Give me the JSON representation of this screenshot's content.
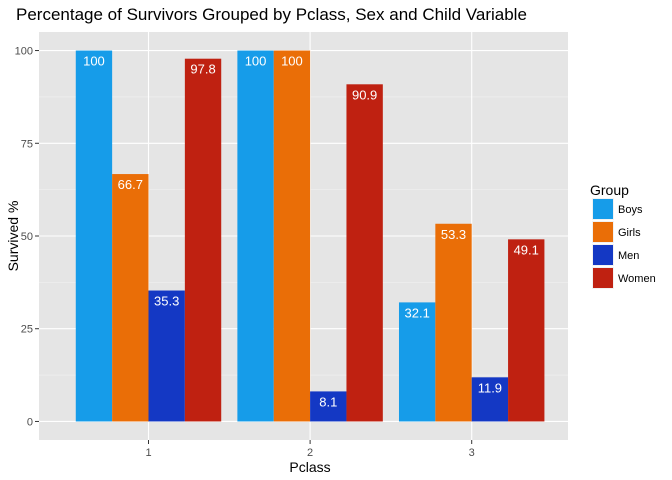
{
  "chart_data": {
    "type": "bar",
    "title": "Percentage of Survivors Grouped by Pclass, Sex and Child Variable",
    "xlabel": "Pclass",
    "ylabel": "Survived %",
    "categories": [
      "1",
      "2",
      "3"
    ],
    "yticks": [
      "0",
      "25",
      "50",
      "75",
      "100"
    ],
    "ylim": [
      -5,
      105
    ],
    "grid": true,
    "legend": {
      "title": "Group",
      "position": "right"
    },
    "series": [
      {
        "name": "Boys",
        "color": "#169ce9",
        "values": [
          100,
          100,
          32.1
        ],
        "labels": [
          "100",
          "100",
          "32.1"
        ]
      },
      {
        "name": "Girls",
        "color": "#ea6e07",
        "values": [
          66.7,
          100,
          53.3
        ],
        "labels": [
          "66.7",
          "100",
          "53.3"
        ]
      },
      {
        "name": "Men",
        "color": "#1438c4",
        "values": [
          35.3,
          8.1,
          11.9
        ],
        "labels": [
          "35.3",
          "8.1",
          "11.9"
        ]
      },
      {
        "name": "Women",
        "color": "#bf2111",
        "values": [
          97.8,
          90.9,
          49.1
        ],
        "labels": [
          "97.8",
          "90.9",
          "49.1"
        ]
      }
    ]
  }
}
